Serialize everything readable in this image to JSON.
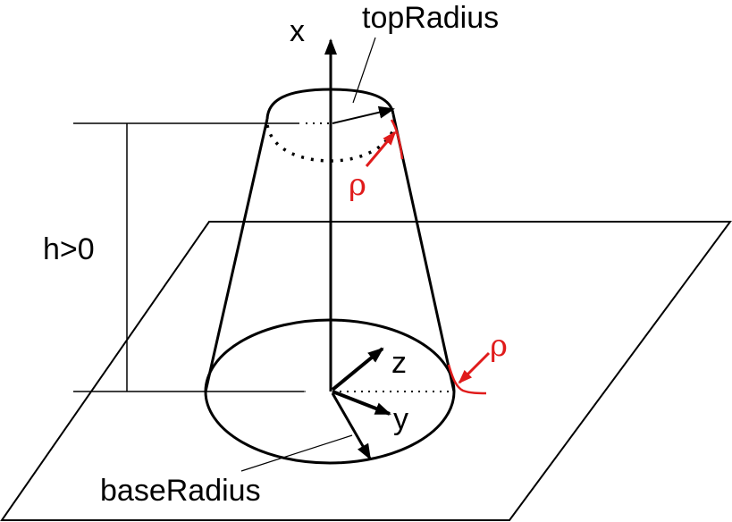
{
  "labels": {
    "x_axis": "x",
    "y_axis": "y",
    "z_axis": "z",
    "top_radius": "topRadius",
    "base_radius": "baseRadius",
    "height": "h>0",
    "rho": "ρ"
  },
  "colors": {
    "line": "#000000",
    "accent": "#e01b1b",
    "background": "#ffffff"
  }
}
